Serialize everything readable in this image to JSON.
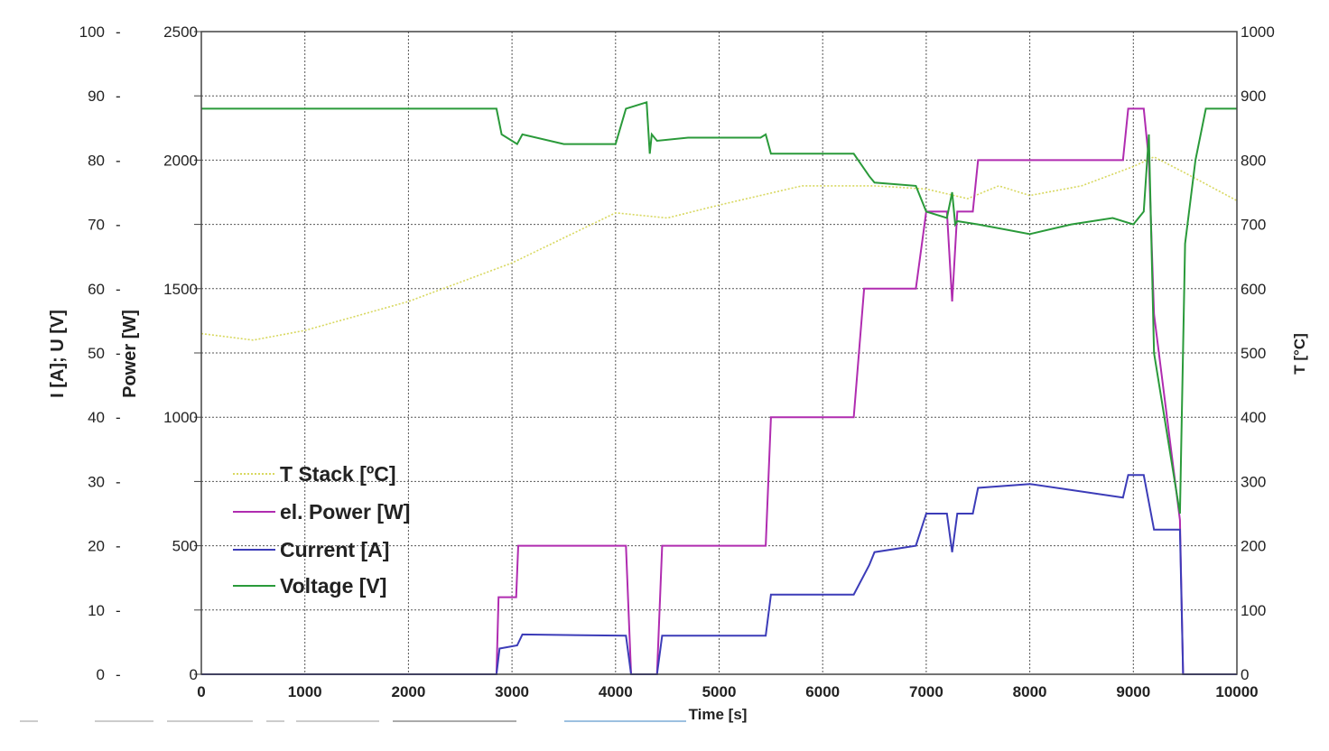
{
  "chart_data": {
    "type": "line",
    "title": "",
    "xlabel": "Time [s]",
    "xlim": [
      0,
      10000
    ],
    "xticks": [
      "0",
      "1000",
      "2000",
      "3000",
      "4000",
      "5000",
      "6000",
      "7000",
      "8000",
      "9000",
      "10000"
    ],
    "y_axes": {
      "left_outer": {
        "label": "I [A]; U [V]",
        "range": [
          0,
          100
        ],
        "ticks": [
          "0",
          "10",
          "20",
          "30",
          "40",
          "50",
          "60",
          "70",
          "80",
          "90",
          "100"
        ]
      },
      "left_inner": {
        "label": "Power [W]",
        "range": [
          0,
          2500
        ],
        "ticks": [
          "0",
          "500",
          "1000",
          "1500",
          "2000",
          "2500"
        ]
      },
      "right": {
        "label": "T [°C]",
        "range": [
          0,
          1000
        ],
        "ticks": [
          "0",
          "100",
          "200",
          "300",
          "400",
          "500",
          "600",
          "700",
          "800",
          "900",
          "1000"
        ]
      }
    },
    "grid": true,
    "legend_position": "bottom-left",
    "series": [
      {
        "name": "T Stack [ºC]",
        "axis": "right",
        "color": "#d8d860",
        "style": "dotted",
        "x": [
          0,
          500,
          1000,
          2000,
          3000,
          4000,
          4500,
          5000,
          5800,
          6500,
          7000,
          7400,
          7700,
          8000,
          8500,
          9000,
          9200,
          9500,
          10000
        ],
        "y": [
          530,
          520,
          535,
          580,
          640,
          718,
          710,
          730,
          760,
          760,
          755,
          740,
          760,
          745,
          760,
          790,
          805,
          780,
          737
        ]
      },
      {
        "name": "el. Power  [W]",
        "axis": "left_inner",
        "color": "#b02cb0",
        "x": [
          0,
          2850,
          2870,
          3040,
          3060,
          4100,
          4150,
          4400,
          4450,
          5450,
          5500,
          6300,
          6400,
          6900,
          7000,
          7200,
          7250,
          7300,
          7450,
          7500,
          8900,
          8950,
          9100,
          9150,
          9200,
          9450,
          9480,
          10000
        ],
        "y": [
          0,
          0,
          300,
          300,
          500,
          500,
          0,
          0,
          500,
          500,
          1000,
          1000,
          1500,
          1500,
          1800,
          1800,
          1450,
          1800,
          1800,
          2000,
          2000,
          2200,
          2200,
          2000,
          1400,
          600,
          0,
          0
        ]
      },
      {
        "name": "Current [A]",
        "axis": "left_outer",
        "color": "#3c3cb8",
        "x": [
          0,
          2850,
          2880,
          3050,
          3100,
          4100,
          4150,
          4400,
          4450,
          5450,
          5500,
          6300,
          6450,
          6500,
          6900,
          7000,
          7200,
          7250,
          7300,
          7450,
          7500,
          8000,
          8900,
          8950,
          9100,
          9200,
          9450,
          9480,
          10000
        ],
        "y": [
          0,
          0,
          4,
          4.5,
          6.2,
          6,
          0,
          0,
          6,
          6,
          12.4,
          12.4,
          17,
          19,
          20,
          25,
          25,
          19,
          25,
          25,
          29,
          29.6,
          27.5,
          31,
          31,
          22.5,
          22.5,
          0,
          0
        ]
      },
      {
        "name": "Voltage [V]",
        "axis": "left_outer",
        "color": "#2a9a3a",
        "x": [
          0,
          2850,
          2900,
          3050,
          3100,
          3500,
          4000,
          4100,
          4300,
          4330,
          4350,
          4400,
          4700,
          5400,
          5450,
          5500,
          6300,
          6450,
          6500,
          6900,
          7000,
          7200,
          7250,
          7280,
          7300,
          7500,
          8000,
          8400,
          8800,
          9000,
          9100,
          9150,
          9200,
          9450,
          9500,
          9600,
          9700,
          10000
        ],
        "y": [
          88,
          88,
          84,
          82.5,
          84,
          82.5,
          82.5,
          88,
          89,
          81,
          84,
          83,
          83.5,
          83.5,
          84,
          81,
          81,
          77.5,
          76.5,
          76,
          72,
          71,
          75,
          70,
          70.5,
          70,
          68.5,
          70,
          71,
          70,
          72,
          84,
          50,
          25,
          67,
          80,
          88,
          88
        ]
      }
    ]
  }
}
